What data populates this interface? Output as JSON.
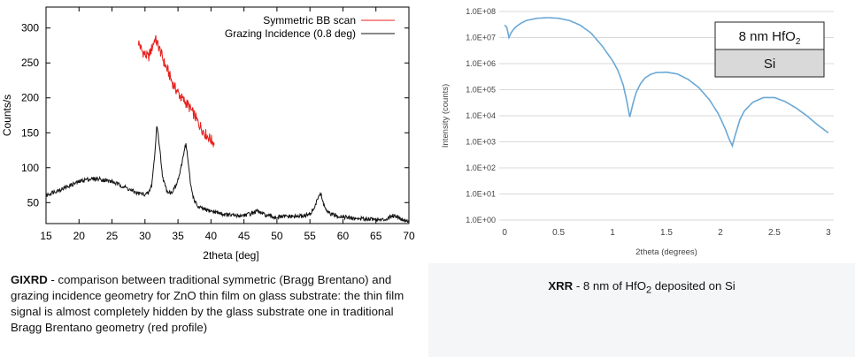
{
  "chart_data": [
    {
      "type": "line",
      "xlabel": "2theta [deg]",
      "ylabel": "Counts/s",
      "xlim": [
        15,
        70
      ],
      "ylim": [
        20,
        330
      ],
      "x_ticks": [
        15,
        20,
        25,
        30,
        35,
        40,
        45,
        50,
        55,
        60,
        65,
        70
      ],
      "y_ticks": [
        50,
        100,
        150,
        200,
        250,
        300
      ],
      "legend": "top-right",
      "series": [
        {
          "name": "Symmetric BB scan",
          "color": "#e8201c",
          "x": [
            29,
            29.5,
            30,
            30.5,
            31,
            31.5,
            32,
            32.5,
            33,
            33.5,
            34,
            34.5,
            35,
            35.5,
            36,
            36.5,
            37,
            37.5,
            38,
            38.5,
            39,
            39.5,
            40,
            40.5
          ],
          "y": [
            280,
            268,
            262,
            258,
            270,
            285,
            275,
            262,
            248,
            238,
            225,
            215,
            208,
            200,
            195,
            190,
            182,
            175,
            165,
            158,
            150,
            145,
            140,
            135
          ]
        },
        {
          "name": "Grazing Incidence (0.8 deg)",
          "color": "#111111",
          "x": [
            15,
            16,
            17,
            18,
            19,
            20,
            21,
            22,
            23,
            24,
            25,
            26,
            27,
            28,
            29,
            30,
            30.5,
            31,
            31.5,
            31.8,
            32.2,
            32.7,
            33.3,
            34,
            34.8,
            35.4,
            35.9,
            36.2,
            36.5,
            36.9,
            37.4,
            38,
            39,
            40,
            41,
            42,
            43,
            44,
            45,
            46,
            47,
            48,
            49,
            50,
            51,
            52,
            53,
            54,
            55,
            55.8,
            56.3,
            56.6,
            57,
            57.6,
            58.5,
            60,
            61,
            62,
            63,
            64,
            65,
            66,
            66.8,
            67.5,
            68.3,
            69,
            70
          ],
          "y": [
            60,
            65,
            68,
            72,
            76,
            80,
            83,
            84,
            84,
            82,
            80,
            76,
            72,
            67,
            63,
            62,
            63,
            74,
            120,
            163,
            130,
            85,
            67,
            64,
            76,
            96,
            123,
            135,
            112,
            76,
            55,
            44,
            40,
            38,
            36,
            33,
            32,
            31,
            32,
            34,
            38,
            33,
            30,
            29,
            30,
            30,
            30,
            31,
            33,
            45,
            60,
            63,
            50,
            36,
            32,
            30,
            28,
            27,
            27,
            27,
            26,
            25,
            28,
            32,
            30,
            26,
            23
          ]
        }
      ]
    },
    {
      "type": "line",
      "xlabel": "2theta (degrees)",
      "ylabel": "Intensity (counts)",
      "xlim": [
        -0.05,
        3.05
      ],
      "ylim": [
        1,
        100000000
      ],
      "scale_y": "log",
      "x_ticks": [
        0,
        0.5,
        1,
        1.5,
        2,
        2.5,
        3
      ],
      "x_tick_labels": [
        "0",
        "0.5",
        "1",
        "1.5",
        "2",
        "2.5",
        "3"
      ],
      "y_ticks": [
        1,
        10,
        100,
        1000,
        10000,
        100000,
        1000000,
        10000000,
        100000000
      ],
      "y_tick_labels": [
        "1.0E+00",
        "1.0E+01",
        "1.0E+02",
        "1.0E+03",
        "1.0E+04",
        "1.0E+05",
        "1.0E+06",
        "1.0E+07",
        "1.0E+08"
      ],
      "grid": true,
      "series": [
        {
          "color": "#6aa8d6",
          "x": [
            0,
            0.02,
            0.04,
            0.06,
            0.08,
            0.1,
            0.15,
            0.2,
            0.3,
            0.4,
            0.5,
            0.6,
            0.7,
            0.8,
            0.9,
            1.0,
            1.05,
            1.1,
            1.13,
            1.16,
            1.19,
            1.22,
            1.26,
            1.3,
            1.35,
            1.4,
            1.5,
            1.6,
            1.7,
            1.8,
            1.9,
            1.98,
            2.04,
            2.08,
            2.11,
            2.14,
            2.18,
            2.22,
            2.3,
            2.4,
            2.5,
            2.6,
            2.7,
            2.8,
            2.9,
            3.0
          ],
          "y": [
            30000000,
            25000000,
            10000000,
            15000000,
            20000000,
            25000000,
            35000000,
            45000000,
            55000000,
            58000000,
            55000000,
            45000000,
            30000000,
            15000000,
            5000000,
            1300000,
            550000,
            150000,
            40000,
            9000,
            30000,
            80000,
            170000,
            280000,
            380000,
            450000,
            470000,
            400000,
            250000,
            120000,
            40000,
            12000,
            3500,
            1300,
            700,
            2000,
            7000,
            15000,
            33000,
            50000,
            50000,
            35000,
            20000,
            10000,
            4500,
            2200
          ]
        }
      ],
      "inset_layers": [
        {
          "text": "8 nm HfO",
          "subscript": "2",
          "fill": "#ffffff"
        },
        {
          "text": "Si",
          "fill": "#d9d9d9"
        }
      ]
    }
  ],
  "captions": {
    "left_bold": "GIXRD",
    "left_text": " - comparison between traditional symmetric (Bragg Brentano) and grazing incidence geometry for ZnO thin film on glass substrate: the thin film signal is almost completely hidden by the glass substrate one in traditional Bragg Brentano geometry (red profile)",
    "right_bold": "XRR",
    "right_text_before": " - 8 nm of HfO",
    "right_sub": "2",
    "right_text_after": " deposited on Si"
  }
}
